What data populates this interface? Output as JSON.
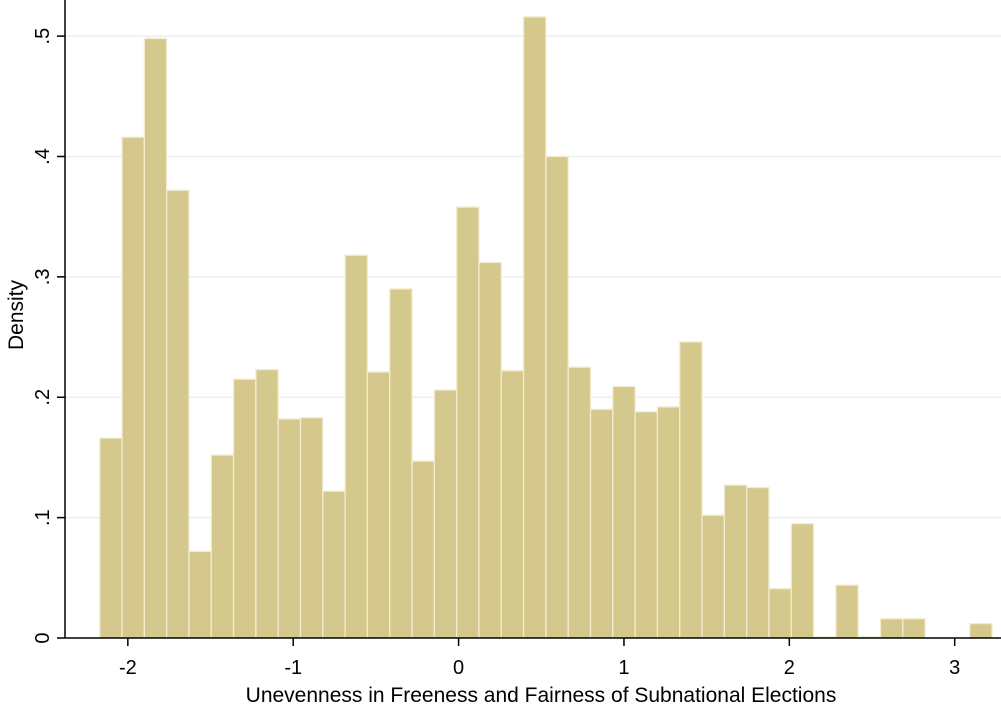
{
  "chart_data": {
    "type": "bar",
    "xlabel": "Unevenness in Freeness and Fairness of Subnational Elections",
    "ylabel": "Density",
    "xlim": [
      -2.38,
      3.28
    ],
    "ylim": [
      0,
      0.53
    ],
    "x_ticks": [
      -2,
      -1,
      0,
      1,
      2,
      3
    ],
    "x_tick_labels": [
      "-2",
      "-1",
      "0",
      "1",
      "2",
      "3"
    ],
    "y_ticks": [
      0,
      0.1,
      0.2,
      0.3,
      0.4,
      0.5
    ],
    "y_tick_labels": [
      "0",
      ".1",
      ".2",
      ".3",
      ".4",
      ".5"
    ],
    "grid": true,
    "bar_color": "#d4c88c",
    "bar_edge_color": "#f2edd2",
    "bin_start": -2.17,
    "bin_width": 0.1349,
    "values": [
      0.166,
      0.416,
      0.498,
      0.372,
      0.072,
      0.152,
      0.215,
      0.223,
      0.182,
      0.183,
      0.122,
      0.318,
      0.221,
      0.29,
      0.147,
      0.206,
      0.358,
      0.312,
      0.222,
      0.516,
      0.4,
      0.225,
      0.19,
      0.209,
      0.188,
      0.192,
      0.246,
      0.102,
      0.127,
      0.125,
      0.041,
      0.095,
      0.001,
      0.044,
      0.001,
      0.016,
      0.016,
      0.0,
      0.0,
      0.012
    ]
  }
}
